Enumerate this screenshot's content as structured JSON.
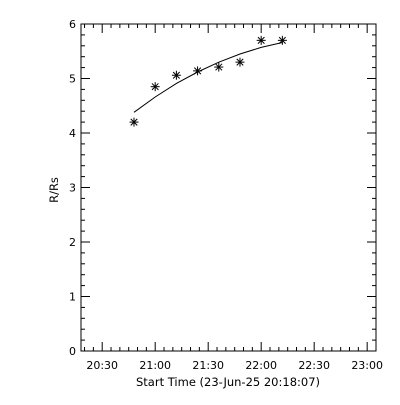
{
  "chart_data": {
    "type": "scatter",
    "xlabel": "Start Time (23-Jun-25 20:18:07)",
    "ylabel": "R/Rs",
    "x_tick_labels": [
      "20:30",
      "21:00",
      "21:30",
      "22:00",
      "22:30",
      "23:00"
    ],
    "y_tick_labels": [
      "0",
      "1",
      "2",
      "3",
      "4",
      "5",
      "6"
    ],
    "xlim": [
      "20:18",
      "23:05"
    ],
    "ylim": [
      0,
      6
    ],
    "series": [
      {
        "marker": "asterisk",
        "points": [
          {
            "x": "20:48",
            "y": 4.2
          },
          {
            "x": "21:00",
            "y": 4.85
          },
          {
            "x": "21:12",
            "y": 5.06
          },
          {
            "x": "21:24",
            "y": 5.14
          },
          {
            "x": "21:36",
            "y": 5.21
          },
          {
            "x": "21:48",
            "y": 5.3
          },
          {
            "x": "22:00",
            "y": 5.7
          },
          {
            "x": "22:12",
            "y": 5.7
          }
        ]
      }
    ],
    "fit_line": {
      "type": "quadratic fit",
      "points": [
        {
          "x": "20:48",
          "y": 4.38
        },
        {
          "x": "21:00",
          "y": 4.66
        },
        {
          "x": "21:12",
          "y": 4.91
        },
        {
          "x": "21:24",
          "y": 5.12
        },
        {
          "x": "21:36",
          "y": 5.3
        },
        {
          "x": "21:48",
          "y": 5.45
        },
        {
          "x": "22:00",
          "y": 5.57
        },
        {
          "x": "22:12",
          "y": 5.66
        }
      ]
    },
    "grid": false,
    "legend": "none",
    "colors": {
      "background": "#ffffff",
      "foreground": "#000000"
    }
  }
}
